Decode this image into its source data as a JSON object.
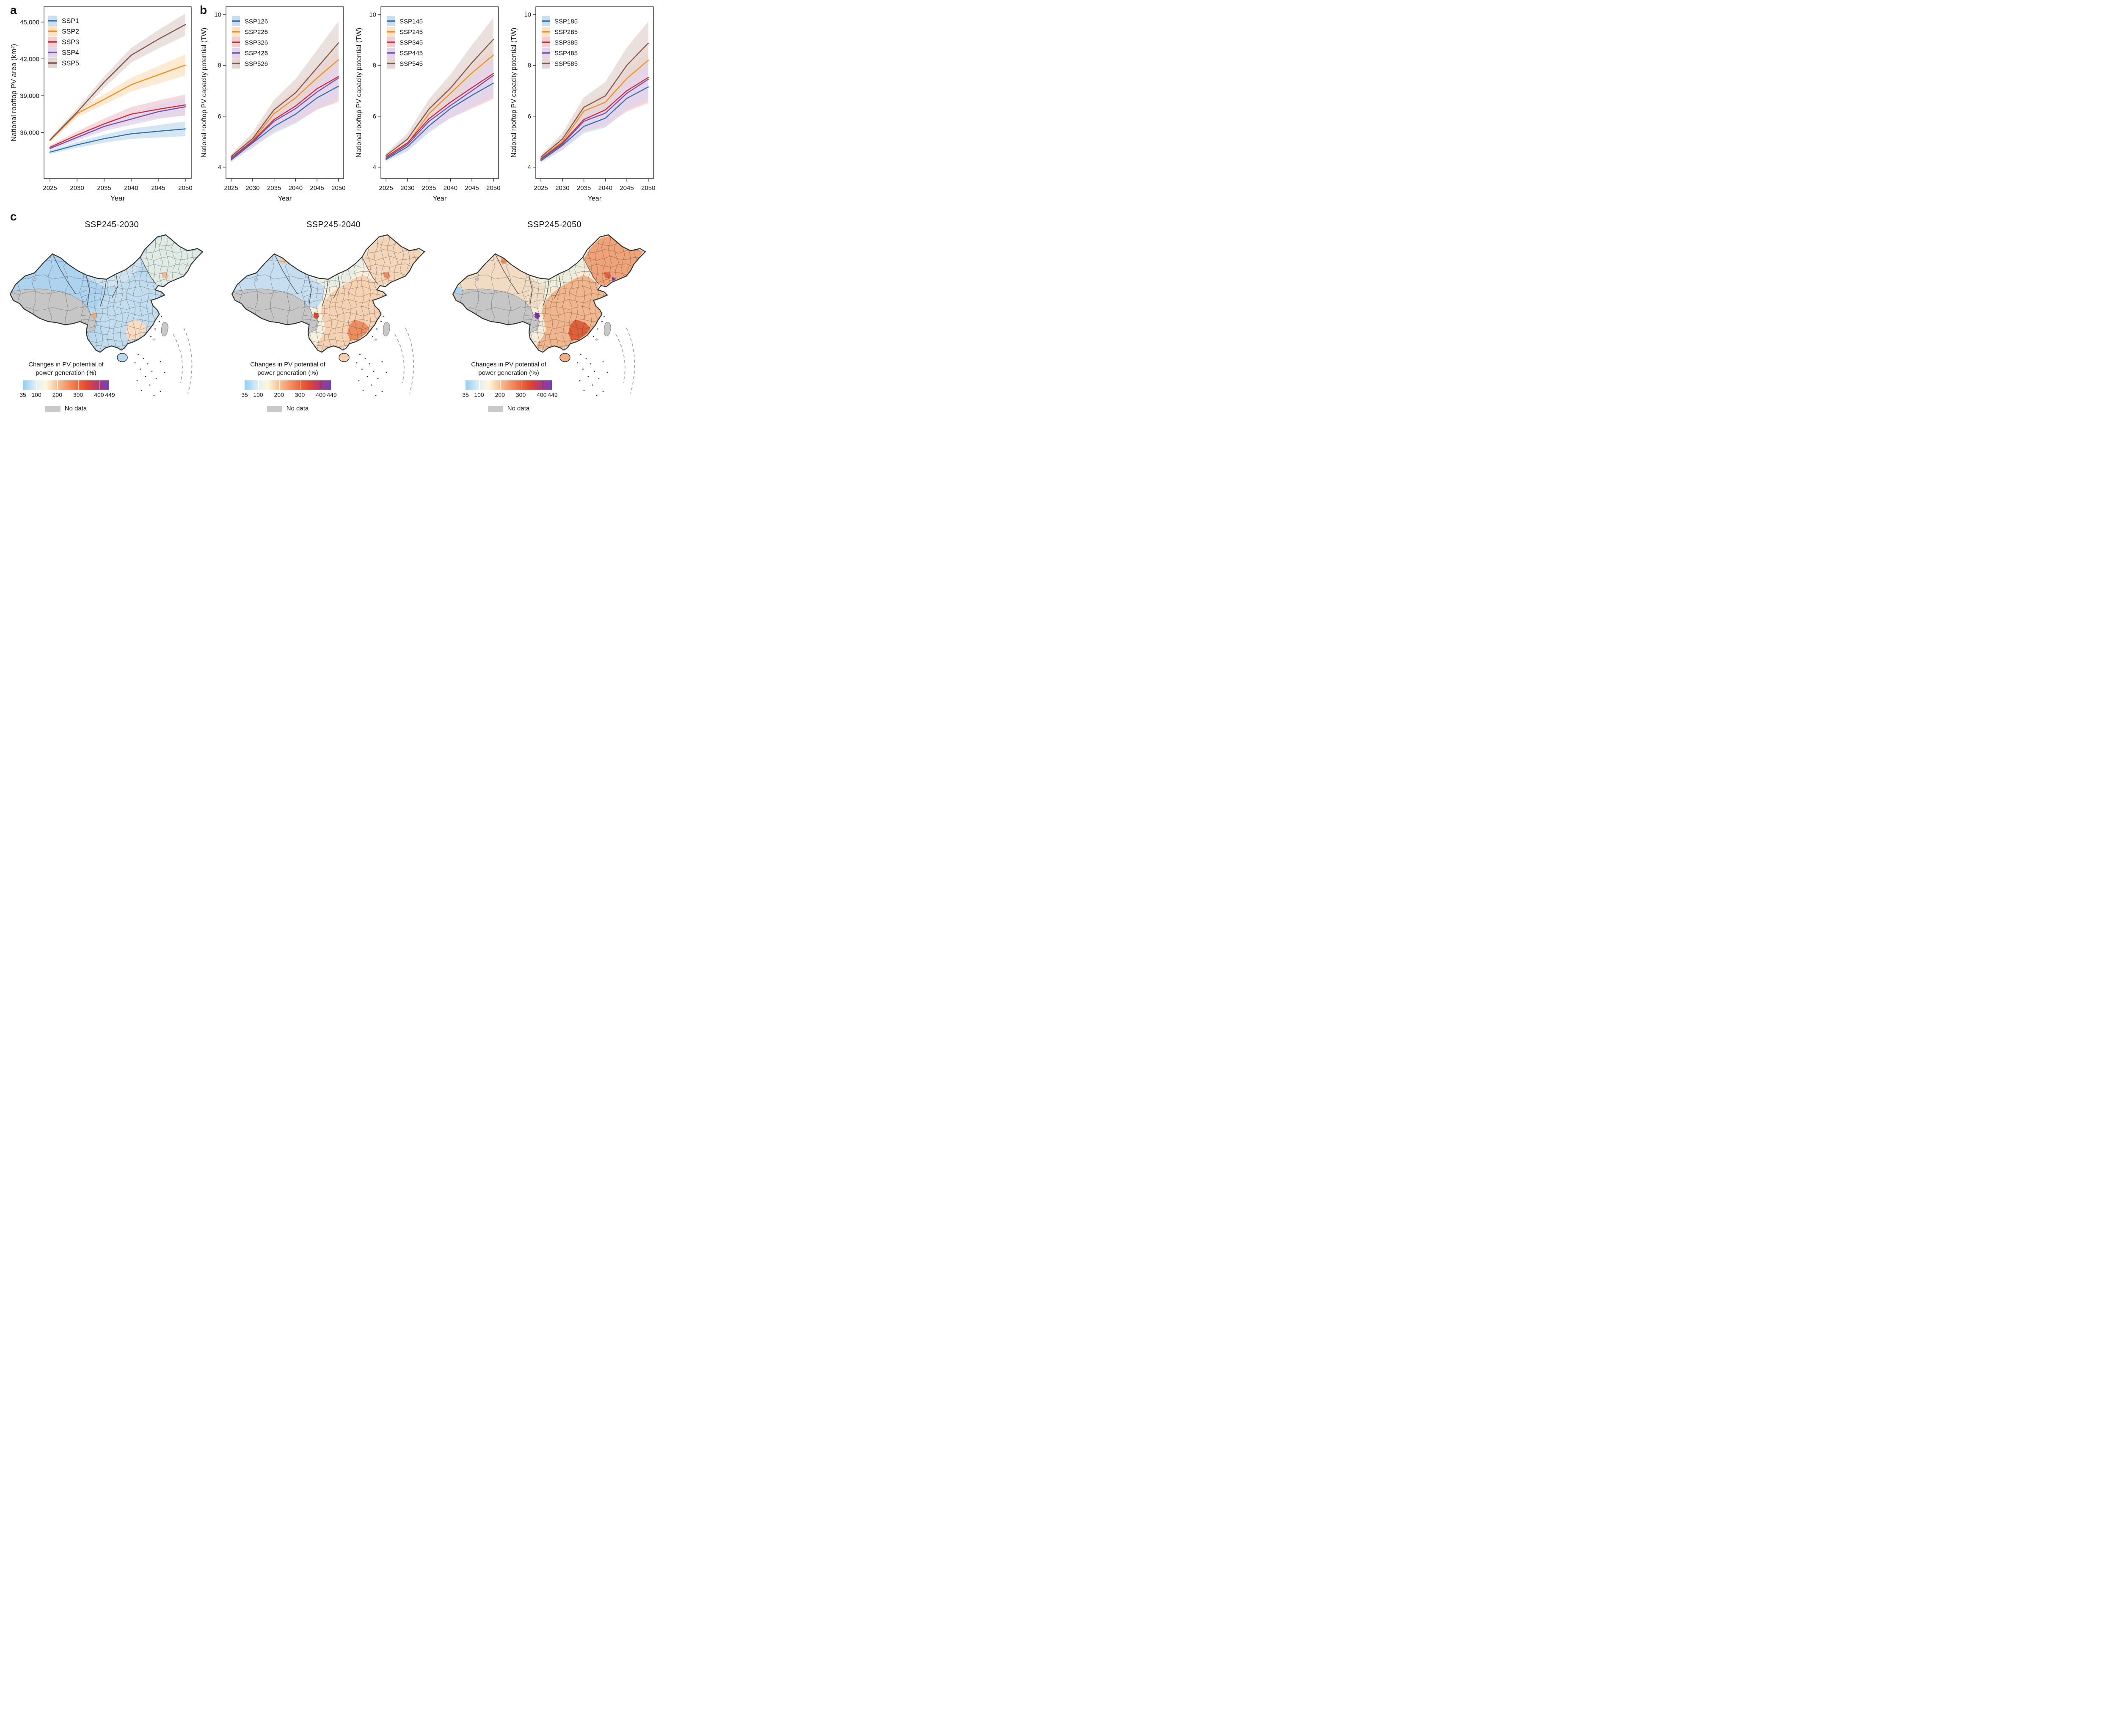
{
  "figure": {
    "panel_a_label": "a",
    "panel_b_label": "b",
    "panel_c_label": "c"
  },
  "chart_data": [
    {
      "id": "pv-area",
      "data_name": "national-rooftop-pv-area-chart",
      "type": "line",
      "xlabel": "Year",
      "ylabel": "National rooftop PV area (km²)",
      "x": [
        2025,
        2030,
        2035,
        2040,
        2045,
        2050
      ],
      "xlim": [
        2023.9,
        2051.1
      ],
      "xtick_labels": [
        "2025",
        "2030",
        "2035",
        "2040",
        "2045",
        "2050"
      ],
      "ylim": [
        32250,
        46250
      ],
      "yticks": [
        36000,
        39000,
        42000,
        45000
      ],
      "ytick_labels": [
        "36,000",
        "39,000",
        "42,000",
        "45,000"
      ],
      "grid": false,
      "legend_position": "top-left",
      "band_start": 150,
      "series": [
        {
          "name": "SSP1",
          "color": "#3273a9",
          "band_color": "#c9dff0",
          "band_end": 600,
          "values": [
            34400,
            35000,
            35500,
            35900,
            36100,
            36300
          ]
        },
        {
          "name": "SSP2",
          "color": "#f78c1e",
          "band_color": "#fce4c6",
          "band_end": 850,
          "values": [
            35350,
            37550,
            38700,
            39900,
            40700,
            41500
          ]
        },
        {
          "name": "SSP3",
          "color": "#d32b2e",
          "band_color": "#f4ced2",
          "band_end": 850,
          "values": [
            34800,
            35800,
            36700,
            37500,
            37900,
            38250
          ]
        },
        {
          "name": "SSP4",
          "color": "#7b4fb0",
          "band_color": "#e2d5ee",
          "band_end": 700,
          "values": [
            34700,
            35600,
            36500,
            37100,
            37700,
            38100
          ]
        },
        {
          "name": "SSP5",
          "color": "#7f574c",
          "band_color": "#e4d7d3",
          "band_end": 900,
          "values": [
            35400,
            37650,
            40100,
            42300,
            43600,
            44800
          ]
        }
      ]
    },
    {
      "id": "pv-capacity-x26",
      "data_name": "pv-capacity-chart-ssp126",
      "type": "line",
      "xlabel": "Year",
      "ylabel": "National rooftop PV capacity potential (TW)",
      "x": [
        2025,
        2030,
        2035,
        2040,
        2045,
        2050
      ],
      "xlim": [
        2023.8,
        2051.2
      ],
      "xtick_labels": [
        "2025",
        "2030",
        "2035",
        "2040",
        "2045",
        "2050"
      ],
      "ylim": [
        3.55,
        10.3
      ],
      "yticks": [
        4,
        6,
        8,
        10
      ],
      "ytick_labels": [
        "4",
        "6",
        "8",
        "10"
      ],
      "grid": false,
      "legend_position": "top-left",
      "band_start": 0.08,
      "series": [
        {
          "name": "SSP126",
          "color": "#3273a9",
          "band_color": "#c9dff0",
          "band_end": 0.55,
          "values": [
            4.28,
            4.95,
            5.6,
            6.08,
            6.72,
            7.18
          ]
        },
        {
          "name": "SSP226",
          "color": "#f78c1e",
          "band_color": "#fce4c6",
          "band_end": 0.6,
          "values": [
            4.35,
            5.05,
            6.1,
            6.72,
            7.5,
            8.22
          ]
        },
        {
          "name": "SSP326",
          "color": "#d32b2e",
          "band_color": "#f4ced2",
          "band_end": 1.0,
          "values": [
            4.36,
            5.02,
            5.87,
            6.4,
            7.08,
            7.56
          ]
        },
        {
          "name": "SSP426",
          "color": "#7b4fb0",
          "band_color": "#e2d5ee",
          "band_end": 0.75,
          "values": [
            4.32,
            4.98,
            5.8,
            6.3,
            6.95,
            7.5
          ]
        },
        {
          "name": "SSP526",
          "color": "#7f574c",
          "band_color": "#e4d7d3",
          "band_end": 0.85,
          "values": [
            4.42,
            5.12,
            6.25,
            6.92,
            7.9,
            8.88
          ]
        }
      ]
    },
    {
      "id": "pv-capacity-x45",
      "data_name": "pv-capacity-chart-ssp145",
      "type": "line",
      "xlabel": "Year",
      "ylabel": "National rooftop PV capacity potential (TW)",
      "x": [
        2025,
        2030,
        2035,
        2040,
        2045,
        2050
      ],
      "xlim": [
        2023.8,
        2051.2
      ],
      "xtick_labels": [
        "2025",
        "2030",
        "2035",
        "2040",
        "2045",
        "2050"
      ],
      "ylim": [
        3.55,
        10.3
      ],
      "yticks": [
        4,
        6,
        8,
        10
      ],
      "ytick_labels": [
        "4",
        "6",
        "8",
        "10"
      ],
      "grid": false,
      "legend_position": "top-left",
      "band_start": 0.08,
      "series": [
        {
          "name": "SSP145",
          "color": "#3273a9",
          "band_color": "#c9dff0",
          "band_end": 0.55,
          "values": [
            4.3,
            4.8,
            5.62,
            6.3,
            6.82,
            7.3
          ]
        },
        {
          "name": "SSP245",
          "color": "#f78c1e",
          "band_color": "#fce4c6",
          "band_end": 0.6,
          "values": [
            4.38,
            4.92,
            6.1,
            6.9,
            7.7,
            8.4
          ]
        },
        {
          "name": "SSP345",
          "color": "#d32b2e",
          "band_color": "#f4ced2",
          "band_end": 1.0,
          "values": [
            4.4,
            4.95,
            5.9,
            6.55,
            7.12,
            7.68
          ]
        },
        {
          "name": "SSP445",
          "color": "#7b4fb0",
          "band_color": "#e2d5ee",
          "band_end": 0.75,
          "values": [
            4.34,
            4.88,
            5.8,
            6.42,
            7.0,
            7.6
          ]
        },
        {
          "name": "SSP545",
          "color": "#7f574c",
          "band_color": "#e4d7d3",
          "band_end": 0.85,
          "values": [
            4.46,
            5.1,
            6.28,
            7.1,
            8.1,
            9.02
          ]
        }
      ]
    },
    {
      "id": "pv-capacity-x85",
      "data_name": "pv-capacity-chart-ssp185",
      "type": "line",
      "xlabel": "Year",
      "ylabel": "National rooftop PV capacity potential (TW)",
      "x": [
        2025,
        2030,
        2035,
        2040,
        2045,
        2050
      ],
      "xlim": [
        2023.8,
        2051.2
      ],
      "xtick_labels": [
        "2025",
        "2030",
        "2035",
        "2040",
        "2045",
        "2050"
      ],
      "ylim": [
        3.55,
        10.3
      ],
      "yticks": [
        4,
        6,
        8,
        10
      ],
      "ytick_labels": [
        "4",
        "6",
        "8",
        "10"
      ],
      "grid": false,
      "legend_position": "top-left",
      "band_start": 0.08,
      "series": [
        {
          "name": "SSP185",
          "color": "#3273a9",
          "band_color": "#c9dff0",
          "band_end": 0.55,
          "values": [
            4.25,
            4.85,
            5.6,
            5.92,
            6.7,
            7.15
          ]
        },
        {
          "name": "SSP285",
          "color": "#f78c1e",
          "band_color": "#fce4c6",
          "band_end": 0.6,
          "values": [
            4.35,
            5.0,
            6.2,
            6.55,
            7.48,
            8.2
          ]
        },
        {
          "name": "SSP385",
          "color": "#d32b2e",
          "band_color": "#f4ced2",
          "band_end": 1.0,
          "values": [
            4.32,
            4.95,
            5.87,
            6.25,
            7.0,
            7.52
          ]
        },
        {
          "name": "SSP485",
          "color": "#7b4fb0",
          "band_color": "#e2d5ee",
          "band_end": 0.75,
          "values": [
            4.3,
            4.9,
            5.8,
            6.12,
            6.9,
            7.45
          ]
        },
        {
          "name": "SSP585",
          "color": "#7f574c",
          "band_color": "#e4d7d3",
          "band_end": 0.85,
          "values": [
            4.4,
            5.1,
            6.35,
            6.8,
            8.0,
            8.87
          ]
        }
      ]
    }
  ],
  "maps": [
    {
      "title": "SSP245-2030",
      "type": "choropleth_map",
      "region": "China",
      "variant": "m2030"
    },
    {
      "title": "SSP245-2040",
      "type": "choropleth_map",
      "region": "China",
      "variant": "m2040"
    },
    {
      "title": "SSP245-2050",
      "type": "choropleth_map",
      "region": "China",
      "variant": "m2050"
    }
  ],
  "colorbar": {
    "title": "Changes in PV potential of power generation (%)",
    "ticks": [
      "35",
      "100",
      "200",
      "300",
      "400",
      "449"
    ],
    "tick_values": [
      35,
      100,
      200,
      300,
      400,
      449
    ],
    "min": 35,
    "max": 449,
    "no_data_label": "No data",
    "no_data_color": "#c9c9c9",
    "gradient": [
      [
        0,
        "#8ecdf5"
      ],
      [
        0.12,
        "#cfe8f5"
      ],
      [
        0.2,
        "#eef3e9"
      ],
      [
        0.27,
        "#fdf7dd"
      ],
      [
        0.38,
        "#f9c9a0"
      ],
      [
        0.5,
        "#f59b6c"
      ],
      [
        0.62,
        "#ee6f42"
      ],
      [
        0.74,
        "#e04a2e"
      ],
      [
        0.84,
        "#c03a62"
      ],
      [
        0.92,
        "#99398f"
      ],
      [
        1,
        "#6b45c0"
      ]
    ]
  },
  "map_palette": {
    "m2030": {
      "base": "#b9d9ef",
      "west": "#aed3ee",
      "north_center": "#cfe2ee",
      "northeast": "#e0ebe4",
      "east": "#c3ddee",
      "se_hot": "#f9dcc1",
      "chengdu": "#f4a87d",
      "liaoning": "#f2b896",
      "dalian": null,
      "nw_spot": null,
      "blue_nw": null,
      "hainan": "#b9d9ef"
    },
    "m2040": {
      "base": "#f6f1df",
      "west": "#c6def0",
      "north_center": "#e9eee2",
      "northeast": "#f6d6b8",
      "east": "#f7d2b2",
      "se_hot": "#ee8d5e",
      "chengdu": "#d6452c",
      "liaoning": "#ec8c63",
      "dalian": null,
      "nw_spot": "#f3c6a0",
      "blue_nw": null,
      "hainan": "#f3cfae"
    },
    "m2050": {
      "base": "#f4ecd9",
      "west": "#f1dcc3",
      "north_center": "#edeeda",
      "northeast": "#f0a377",
      "east": "#f2b68c",
      "se_hot": "#df6038",
      "chengdu": "#7c2fa6",
      "liaoning": "#e2633e",
      "dalian": "#4547c3",
      "nw_spot": "#ee9364",
      "blue_nw": "#a9d4f1",
      "hainan": "#efb183"
    },
    "mesh_color": "#3c4450",
    "outline_color": "#333333",
    "taiwan_color": "#c9c9c9",
    "no_data_region_color": "#c6c6c6"
  }
}
